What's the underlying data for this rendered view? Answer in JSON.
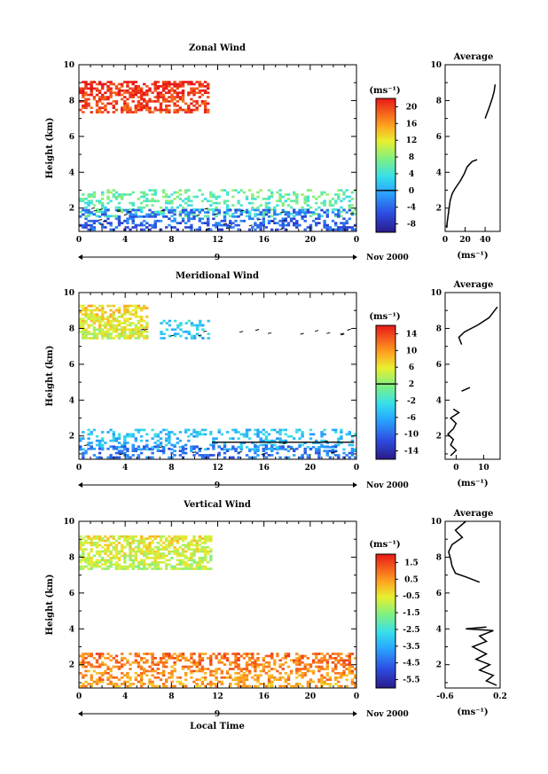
{
  "chart_data": [
    {
      "type": "heatmap",
      "title": "Zonal Wind",
      "ylabel": "Height (km)",
      "xlabel": "",
      "xlim": [
        0,
        24
      ],
      "ylim": [
        0.7,
        10
      ],
      "x_ticks": [
        "0",
        "4",
        "8",
        "12",
        "16",
        "20",
        "0"
      ],
      "y_ticks": [
        "2",
        "4",
        "6",
        "8",
        "10"
      ],
      "date_marker": "9",
      "date_label": "Nov 2000",
      "colorbar": {
        "unit": "(ms⁻¹)",
        "range": [
          -10,
          22
        ],
        "ticks": [
          "20",
          "16",
          "12",
          "8",
          "4",
          "0",
          "-4",
          "-8"
        ],
        "contour_at": "0"
      },
      "bands": [
        {
          "x0": 0.0,
          "x1": 11.2,
          "h0": 7.3,
          "h1": 9.0,
          "value": 20.5,
          "density": 0.55
        },
        {
          "x0": 0.0,
          "x1": 24.0,
          "h0": 1.5,
          "h1": 3.0,
          "value": 5.5,
          "density": 0.3
        },
        {
          "x0": 0.0,
          "x1": 24.0,
          "h0": 0.75,
          "h1": 1.9,
          "value": -4.0,
          "density": 0.35
        }
      ],
      "average_profile": {
        "title": "Average",
        "xlabel": "(ms⁻¹)",
        "xlim": [
          0,
          55
        ],
        "x_ticks": [
          "0",
          "20",
          "40"
        ],
        "y_ticks": [
          "2",
          "4",
          "6",
          "8",
          "10"
        ],
        "segments": [
          [
            [
              50,
              8.9
            ],
            [
              49,
              8.5
            ],
            [
              47,
              8.1
            ],
            [
              44,
              7.6
            ],
            [
              40,
              7.0
            ]
          ],
          [
            [
              32,
              4.7
            ],
            [
              27,
              4.6
            ],
            [
              22,
              4.3
            ],
            [
              19,
              3.9
            ],
            [
              15,
              3.5
            ],
            [
              10,
              3.1
            ],
            [
              7,
              2.8
            ],
            [
              5,
              2.4
            ],
            [
              4,
              2.0
            ],
            [
              3,
              1.6
            ],
            [
              2,
              1.2
            ],
            [
              1.5,
              0.9
            ]
          ]
        ]
      }
    },
    {
      "type": "heatmap",
      "title": "Meridional Wind",
      "ylabel": "Height (km)",
      "xlabel": "",
      "xlim": [
        0,
        24
      ],
      "ylim": [
        0.7,
        10
      ],
      "x_ticks": [
        "0",
        "4",
        "8",
        "12",
        "16",
        "20",
        "0"
      ],
      "y_ticks": [
        "2",
        "4",
        "6",
        "8",
        "10"
      ],
      "date_marker": "9",
      "date_label": "Nov 2000",
      "colorbar": {
        "unit": "(ms⁻¹)",
        "range": [
          -16,
          16
        ],
        "ticks": [
          "14",
          "10",
          "6",
          "2",
          "-2",
          "-6",
          "-10",
          "-14"
        ],
        "contour_at": "2"
      },
      "bands": [
        {
          "x0": 0.0,
          "x1": 6.0,
          "h0": 7.4,
          "h1": 9.2,
          "value": 6.0,
          "density": 0.65
        },
        {
          "x0": 7.0,
          "x1": 11.2,
          "h0": 7.4,
          "h1": 8.4,
          "value": -4.0,
          "density": 0.3
        },
        {
          "x0": 0.0,
          "x1": 24.0,
          "h0": 1.2,
          "h1": 2.4,
          "value": -5.0,
          "density": 0.3
        },
        {
          "x0": 0.0,
          "x1": 24.0,
          "h0": 0.75,
          "h1": 1.4,
          "value": -9.0,
          "density": 0.3
        }
      ],
      "average_profile": {
        "title": "Average",
        "xlabel": "(ms⁻¹)",
        "xlim": [
          -4,
          16
        ],
        "x_ticks": [
          "0",
          "10"
        ],
        "y_ticks": [
          "2",
          "4",
          "6",
          "8",
          "10"
        ],
        "segments": [
          [
            [
              15,
              9.2
            ],
            [
              12,
              8.6
            ],
            [
              8,
              8.2
            ],
            [
              3,
              7.8
            ],
            [
              1,
              7.5
            ],
            [
              2,
              7.1
            ]
          ],
          [
            [
              5,
              4.7
            ],
            [
              2,
              4.5
            ]
          ],
          [
            [
              -1,
              3.5
            ],
            [
              1,
              3.3
            ],
            [
              -2,
              3.0
            ],
            [
              0,
              2.7
            ],
            [
              -1,
              2.4
            ],
            [
              -3,
              2.1
            ],
            [
              -1,
              1.8
            ],
            [
              -2,
              1.5
            ],
            [
              0,
              1.2
            ],
            [
              -2,
              0.9
            ]
          ]
        ]
      }
    },
    {
      "type": "heatmap",
      "title": "Vertical Wind",
      "ylabel": "Height (km)",
      "xlabel": "Local Time",
      "xlim": [
        0,
        24
      ],
      "ylim": [
        0.7,
        10
      ],
      "x_ticks": [
        "0",
        "4",
        "8",
        "12",
        "16",
        "20",
        "0"
      ],
      "y_ticks": [
        "2",
        "4",
        "6",
        "8",
        "10"
      ],
      "date_marker": "9",
      "date_label": "Nov 2000",
      "colorbar": {
        "unit": "(ms⁻¹)",
        "range": [
          -6.5,
          2.5
        ],
        "ticks": [
          "1.5",
          "0.5",
          "-0.5",
          "-1.5",
          "-2.5",
          "-3.5",
          "-4.5",
          "-5.5"
        ],
        "contour_at": ""
      },
      "bands": [
        {
          "x0": 0.0,
          "x1": 11.5,
          "h0": 7.3,
          "h1": 9.1,
          "value": -0.6,
          "density": 0.65
        },
        {
          "x0": 0.0,
          "x1": 24.0,
          "h0": 0.75,
          "h1": 2.6,
          "value": 1.0,
          "density": 0.45
        }
      ],
      "average_profile": {
        "title": "Average",
        "xlabel": "(ms⁻¹)",
        "xlim": [
          -0.6,
          0.2
        ],
        "x_ticks": [
          "-0.6",
          "0.2"
        ],
        "y_ticks": [
          "2",
          "4",
          "6",
          "8",
          "10"
        ],
        "segments": [
          [
            [
              -0.3,
              10.0
            ],
            [
              -0.45,
              9.5
            ],
            [
              -0.35,
              9.1
            ],
            [
              -0.5,
              8.7
            ],
            [
              -0.55,
              8.3
            ],
            [
              -0.52,
              7.9
            ],
            [
              -0.5,
              7.5
            ],
            [
              -0.45,
              7.1
            ],
            [
              -0.3,
              6.9
            ],
            [
              -0.1,
              6.6
            ]
          ],
          [
            [
              0.0,
              4.1
            ],
            [
              -0.3,
              4.0
            ],
            [
              0.1,
              3.9
            ],
            [
              -0.1,
              3.6
            ],
            [
              0.0,
              3.3
            ],
            [
              -0.2,
              3.0
            ],
            [
              0.0,
              2.6
            ],
            [
              -0.15,
              2.3
            ],
            [
              0.05,
              2.0
            ],
            [
              -0.1,
              1.7
            ],
            [
              0.1,
              1.4
            ],
            [
              0.0,
              1.1
            ],
            [
              0.15,
              0.85
            ]
          ]
        ]
      }
    }
  ]
}
